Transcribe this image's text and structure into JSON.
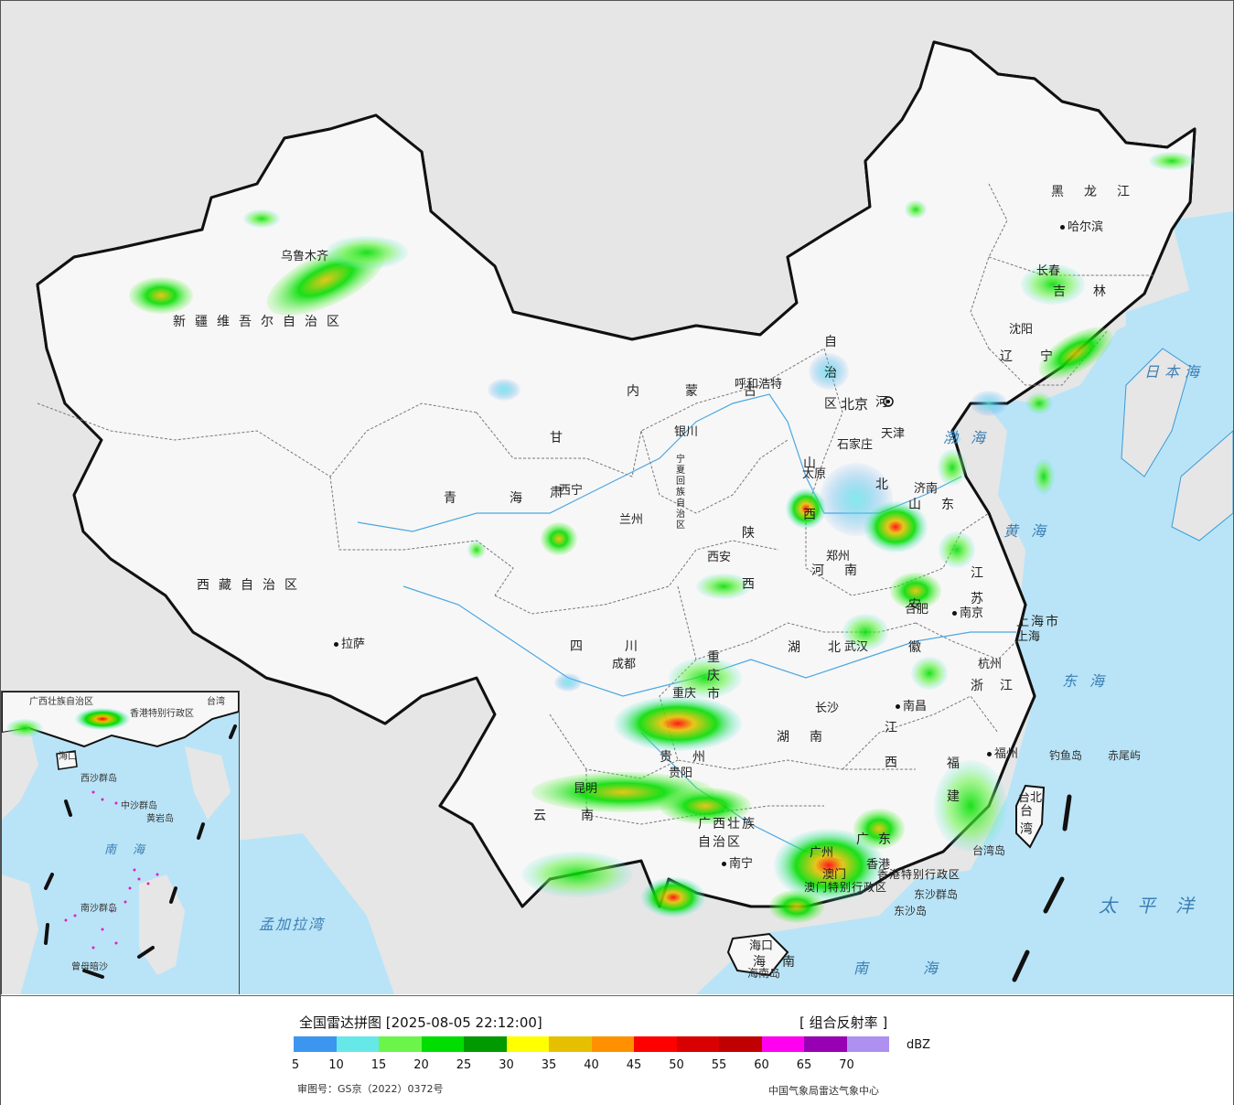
{
  "map": {
    "region_labels": [
      {
        "text": "新疆维吾尔自治区"
      },
      {
        "text": "西藏自治区"
      },
      {
        "text": "青海"
      },
      {
        "text": "甘肃"
      },
      {
        "text": "内蒙古"
      },
      {
        "text": "自治区"
      },
      {
        "text": "黑龙江"
      },
      {
        "text": "吉林"
      },
      {
        "text": "辽宁"
      },
      {
        "text": "河北"
      },
      {
        "text": "山西"
      },
      {
        "text": "陕西"
      },
      {
        "text": "河南"
      },
      {
        "text": "山东"
      },
      {
        "text": "江苏"
      },
      {
        "text": "安徽"
      },
      {
        "text": "浙江"
      },
      {
        "text": "湖北"
      },
      {
        "text": "湖南"
      },
      {
        "text": "江西"
      },
      {
        "text": "福建"
      },
      {
        "text": "四川"
      },
      {
        "text": "贵州"
      },
      {
        "text": "云南"
      },
      {
        "text": "广西壮族自治区"
      },
      {
        "text": "广东"
      },
      {
        "text": "海南"
      },
      {
        "text": "宁夏回族自治区"
      },
      {
        "text": "重庆市"
      },
      {
        "text": "上海市"
      },
      {
        "text": "台湾"
      },
      {
        "text": "香港特别行政区"
      },
      {
        "text": "澳门特别行政区"
      }
    ],
    "cities": [
      "乌鲁木齐",
      "拉萨",
      "西宁",
      "兰州",
      "银川",
      "呼和浩特",
      "北京",
      "天津",
      "石家庄",
      "太原",
      "济南",
      "郑州",
      "西安",
      "哈尔滨",
      "长春",
      "沈阳",
      "南京",
      "合肥",
      "上海",
      "杭州",
      "武汉",
      "南昌",
      "长沙",
      "福州",
      "台北",
      "成都",
      "重庆",
      "贵阳",
      "昆明",
      "南宁",
      "广州",
      "香港",
      "澳门",
      "海口"
    ],
    "seas": [
      "渤海",
      "黄海",
      "东海",
      "南海",
      "日本海",
      "太平洋",
      "孟加拉湾"
    ],
    "islands": [
      "钓鱼岛",
      "赤尾屿",
      "东沙群岛",
      "东沙岛",
      "台湾岛",
      "海南岛"
    ],
    "inset_labels": [
      "广西壮族自治区",
      "香港特别行政区",
      "台湾",
      "海口",
      "西沙群岛",
      "中沙群岛",
      "黄岩岛",
      "南海",
      "南沙群岛",
      "曾母暗沙"
    ]
  },
  "legend": {
    "title": "全国雷达拼图 [2025-08-05 22:12:00]",
    "product": "[ 组合反射率 ]",
    "unit": "dBZ",
    "colors": [
      "#3c96f0",
      "#66e8e8",
      "#6bf54a",
      "#00dd00",
      "#009a00",
      "#ffff00",
      "#e6c000",
      "#ff9000",
      "#ff0000",
      "#d80000",
      "#c00000",
      "#ff00f0",
      "#9800b4",
      "#ad90f0"
    ],
    "ticks": [
      "5",
      "10",
      "15",
      "20",
      "25",
      "30",
      "35",
      "40",
      "45",
      "50",
      "55",
      "60",
      "65",
      "70"
    ],
    "review_no": "审图号：GS京（2022）0372号",
    "organization": "中国气象局雷达气象中心"
  }
}
